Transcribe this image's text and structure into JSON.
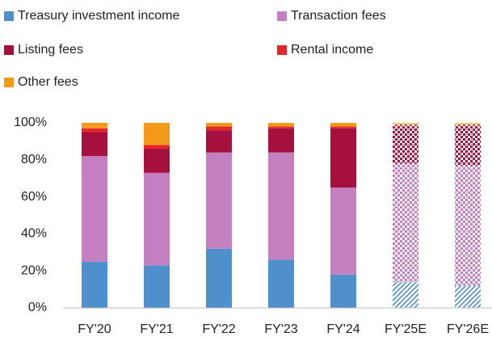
{
  "chart_data": {
    "type": "stacked_bar",
    "categories": [
      "FY'20",
      "FY'21",
      "FY'22",
      "FY'23",
      "FY'24",
      "FY'25E",
      "FY'26E"
    ],
    "projected": [
      false,
      false,
      false,
      false,
      false,
      true,
      true
    ],
    "series": [
      {
        "name": "Treasury investment income",
        "color": "#4f8fcb",
        "values": [
          25,
          23,
          32,
          26,
          18,
          14,
          12
        ]
      },
      {
        "name": "Transaction fees",
        "color": "#c47fc1",
        "values": [
          57,
          50,
          52,
          58,
          47,
          64,
          65
        ]
      },
      {
        "name": "Listing fees",
        "color": "#a5103f",
        "values": [
          13,
          13,
          12,
          13,
          32,
          20,
          21
        ]
      },
      {
        "name": "Rental income",
        "color": "#e5262b",
        "values": [
          2,
          2,
          2,
          1,
          1,
          1,
          1
        ]
      },
      {
        "name": "Other fees",
        "color": "#f39a1a",
        "values": [
          3,
          12,
          2,
          2,
          2,
          1,
          1
        ]
      }
    ],
    "ylim": [
      0,
      100
    ],
    "yticks": [
      {
        "value": 0,
        "label": "0%"
      },
      {
        "value": 20,
        "label": "20%"
      },
      {
        "value": 40,
        "label": "40%"
      },
      {
        "value": 60,
        "label": "60%"
      },
      {
        "value": 80,
        "label": "80%"
      },
      {
        "value": 100,
        "label": "100%"
      }
    ],
    "legend": "top"
  }
}
